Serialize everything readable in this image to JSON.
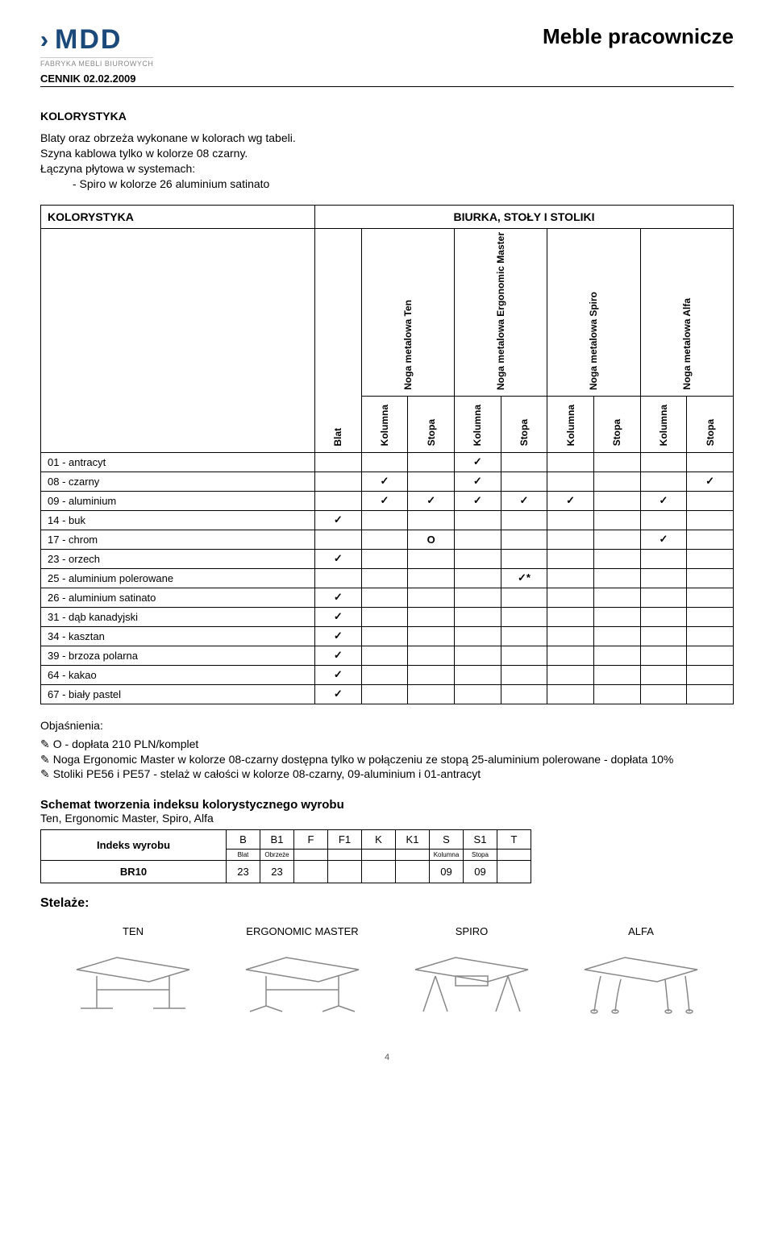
{
  "header": {
    "logo_text": "MDD",
    "logo_sub": "FABRYKA MEBLI BIUROWYCH",
    "cennik": "CENNIK 02.02.2009",
    "page_title": "Meble pracownicze"
  },
  "section_heading": "KOLORYSTYKA",
  "intro": {
    "line1": "Blaty oraz obrzeża wykonane w kolorach wg tabeli.",
    "line2": "Szyna kablowa tylko w kolorze 08 czarny.",
    "line3": "Łączyna płytowa w systemach:",
    "line4": "- Spiro w kolorze 26 aluminium satinato"
  },
  "table": {
    "left_header": "KOLORYSTYKA",
    "right_header": "BIURKA, STOŁY I STOLIKI",
    "col_blat": "Blat",
    "legs": [
      {
        "name": "Noga metalowa Ten"
      },
      {
        "name": "Noga metalowa Ergonomic Master"
      },
      {
        "name": "Noga metalowa Spiro"
      },
      {
        "name": "Noga metalowa Alfa"
      }
    ],
    "sub_kol": "Kolumna",
    "sub_stopa": "Stopa",
    "rows": [
      {
        "label": "01 - antracyt",
        "cells": [
          "",
          "",
          "",
          "✓",
          "",
          "",
          "",
          "",
          ""
        ]
      },
      {
        "label": "08 - czarny",
        "cells": [
          "",
          "✓",
          "",
          "✓",
          "",
          "",
          "",
          "",
          "✓"
        ]
      },
      {
        "label": "09 - aluminium",
        "cells": [
          "",
          "✓",
          "✓",
          "✓",
          "✓",
          "✓",
          "",
          "✓",
          ""
        ]
      },
      {
        "label": "14 - buk",
        "cells": [
          "✓",
          "",
          "",
          "",
          "",
          "",
          "",
          "",
          ""
        ]
      },
      {
        "label": "17 - chrom",
        "cells": [
          "",
          "",
          "O",
          "",
          "",
          "",
          "",
          "✓",
          ""
        ]
      },
      {
        "label": "23 - orzech",
        "cells": [
          "✓",
          "",
          "",
          "",
          "",
          "",
          "",
          "",
          ""
        ]
      },
      {
        "label": "25 - aluminium polerowane",
        "cells": [
          "",
          "",
          "",
          "",
          "✓*",
          "",
          "",
          "",
          ""
        ]
      },
      {
        "label": "26 - aluminium satinato",
        "cells": [
          "✓",
          "",
          "",
          "",
          "",
          "",
          "",
          "",
          ""
        ]
      },
      {
        "label": "31 - dąb kanadyjski",
        "cells": [
          "✓",
          "",
          "",
          "",
          "",
          "",
          "",
          "",
          ""
        ]
      },
      {
        "label": "34 - kasztan",
        "cells": [
          "✓",
          "",
          "",
          "",
          "",
          "",
          "",
          "",
          ""
        ]
      },
      {
        "label": "39 - brzoza polarna",
        "cells": [
          "✓",
          "",
          "",
          "",
          "",
          "",
          "",
          "",
          ""
        ]
      },
      {
        "label": "64 - kakao",
        "cells": [
          "✓",
          "",
          "",
          "",
          "",
          "",
          "",
          "",
          ""
        ]
      },
      {
        "label": "67 - biały pastel",
        "cells": [
          "✓",
          "",
          "",
          "",
          "",
          "",
          "",
          "",
          ""
        ]
      }
    ]
  },
  "notes": {
    "heading": "Objaśnienia:",
    "items": [
      "O - dopłata 210 PLN/komplet",
      "Noga Ergonomic Master w kolorze 08-czarny dostępna tylko w połączeniu ze stopą 25-aluminium polerowane - dopłata 10%",
      "Stoliki PE56 i PE57 - stelaż w całości w kolorze 08-czarny, 09-aluminium i 01-antracyt"
    ]
  },
  "schema": {
    "heading": "Schemat tworzenia indeksu kolorystycznego wyrobu",
    "sub": "Ten, Ergonomic Master, Spiro, Alfa",
    "row_label": "Indeks wyrobu",
    "cols": [
      "B",
      "B1",
      "F",
      "F1",
      "K",
      "K1",
      "S",
      "S1",
      "T"
    ],
    "small": [
      "Blat",
      "Obrzeże",
      "",
      "",
      "",
      "",
      "Kolumna",
      "Stopa",
      ""
    ],
    "example_label": "BR10",
    "example_vals": [
      "23",
      "23",
      "",
      "",
      "",
      "",
      "09",
      "09",
      ""
    ]
  },
  "stelaze": {
    "heading": "Stelaże:",
    "frames": [
      "TEN",
      "ERGONOMIC MASTER",
      "SPIRO",
      "ALFA"
    ]
  },
  "page_number": "4",
  "colors": {
    "brand": "#1a497a",
    "border": "#000000",
    "bg": "#ffffff",
    "muted": "#888888"
  }
}
